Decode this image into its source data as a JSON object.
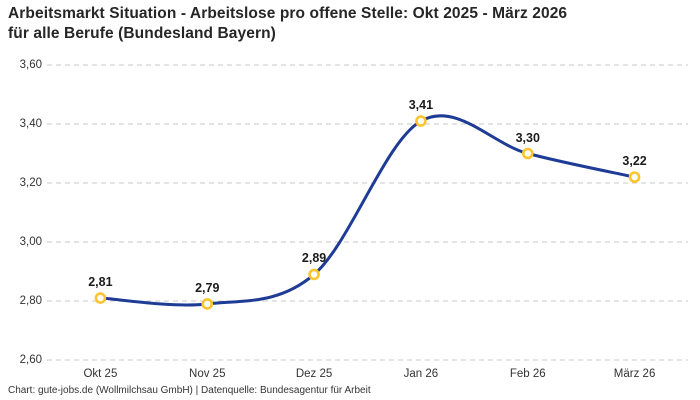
{
  "title": "Arbeitsmarkt Situation - Arbeitslose pro offene Stelle: Okt 2025 - März 2026 für alle Berufe (Bundesland Bayern)",
  "footer": "Chart: gute-jobs.de (Wollmilchsau GmbH) | Datenquelle: Bundesagentur für Arbeit",
  "colors": {
    "line": "#1e3c96",
    "marker_stroke": "#fdc42d",
    "marker_fill": "#ffffff",
    "grid": "#c8c8c8",
    "tick_text": "#333333",
    "label_text": "#1c1c1c",
    "title_text": "#262626"
  },
  "chart_data": {
    "type": "line",
    "title": "Arbeitsmarkt Situation - Arbeitslose pro offene Stelle: Okt 2025 - März 2026 für alle Berufe (Bundesland Bayern)",
    "categories": [
      "Okt 25",
      "Nov 25",
      "Dez 25",
      "Jan 26",
      "Feb 26",
      "März 26"
    ],
    "values": [
      2.81,
      2.79,
      2.89,
      3.41,
      3.3,
      3.22
    ],
    "value_labels": [
      "2,81",
      "2,79",
      "2,89",
      "3,41",
      "3,30",
      "3,22"
    ],
    "y_ticks": [
      {
        "value": 3.6,
        "label": "3,60"
      },
      {
        "value": 3.4,
        "label": "3,40"
      },
      {
        "value": 3.2,
        "label": "3,20"
      },
      {
        "value": 3.0,
        "label": "3,00"
      },
      {
        "value": 2.8,
        "label": "2,80"
      },
      {
        "value": 2.6,
        "label": "2,60"
      }
    ],
    "ylim": [
      2.6,
      3.6
    ],
    "xlabel": "",
    "ylabel": "",
    "grid": "horizontal-dashed",
    "legend": "none",
    "smooth": true
  }
}
